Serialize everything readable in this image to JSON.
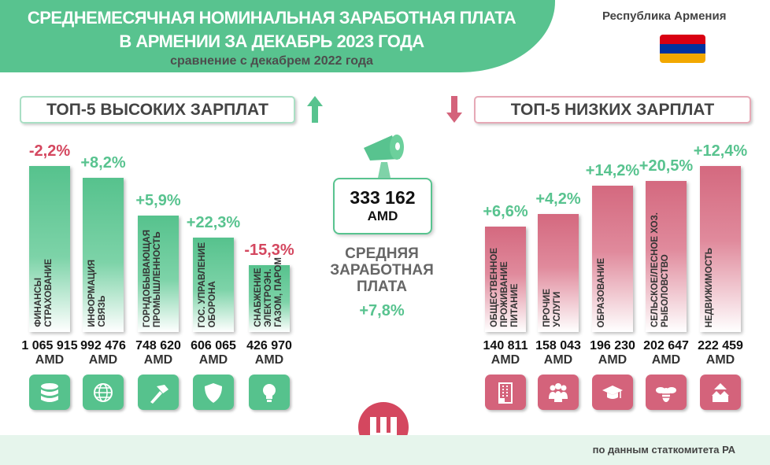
{
  "header": {
    "title_line1": "СРЕДНЕМЕСЯЧНАЯ НОМИНАЛЬНАЯ ЗАРАБОТНАЯ ПЛАТА",
    "title_line2": "В АРМЕНИИ ЗА ДЕКАБРЬ  2023 ГОДА",
    "subtitle": "сравнение с декабрем 2022 года",
    "country": "Республика Армения"
  },
  "colors": {
    "green": "#58c38f",
    "red": "#d4637b",
    "flag": [
      "#d90012",
      "#0033a0",
      "#f2a800"
    ]
  },
  "average": {
    "value": "333 162",
    "unit": "AMD",
    "label": "СРЕДНЯЯ\nЗАРАБОТНАЯ\nПЛАТА",
    "change": "+7,8%"
  },
  "footer": {
    "source": "по данным статкомитета РА"
  },
  "chart_data": [
    {
      "type": "bar",
      "title": "ТОП-5 ВЫСОКИХ ЗАРПЛАТ",
      "unit": "AMD",
      "categories": [
        "ФИНАНСЫ\nСТРАХОВАНИЕ",
        "ИНФОРМАЦИЯ\nСВЯЗЬ",
        "ГОРНДОБЫВАЮЩАЯ\nПРОМЫШЛЕННОСТЬ",
        "ГОС. УПРАВЛЕНИЕ\nОБОРОНА",
        "СНАБЖЕНИЕ\nЭЛЕКТРОЭН.\nГАЗОМ, ПАРОМ"
      ],
      "values": [
        1065915,
        992476,
        748620,
        606065,
        426970
      ],
      "value_labels": [
        "1 065 915",
        "992 476",
        "748 620",
        "606 065",
        "426 970"
      ],
      "changes": [
        "-2,2%",
        "+8,2%",
        "+5,9%",
        "+22,3%",
        "-15,3%"
      ],
      "icons": [
        "database-icon",
        "globe-icon",
        "hammer-icon",
        "shield-icon",
        "lightbulb-icon"
      ]
    },
    {
      "type": "bar",
      "title": "ТОП-5 НИЗКИХ ЗАРПЛАТ",
      "unit": "AMD",
      "categories": [
        "ОБЩЕСТВЕННОЕ\nПРОЖИВАНИЕ\nПИТАНИЕ",
        "ПРОЧИЕ\nУСЛУГИ",
        "ОБРАЗОВАНИЕ",
        "СЕЛЬСКОЕ/ЛЕСНОЕ ХОЗ.\nРЫБОЛОВСТВО",
        "НЕДВИЖИМОСТЬ"
      ],
      "values": [
        140811,
        158043,
        196230,
        202647,
        222459
      ],
      "value_labels": [
        "140 811",
        "158 043",
        "196 230",
        "202 647",
        "222 459"
      ],
      "changes": [
        "+6,6%",
        "+4,2%",
        "+14,2%",
        "+20,5%",
        "+12,4%"
      ],
      "icons": [
        "building-icon",
        "people-icon",
        "graduation-cap-icon",
        "bee-icon",
        "houses-icon"
      ]
    }
  ]
}
